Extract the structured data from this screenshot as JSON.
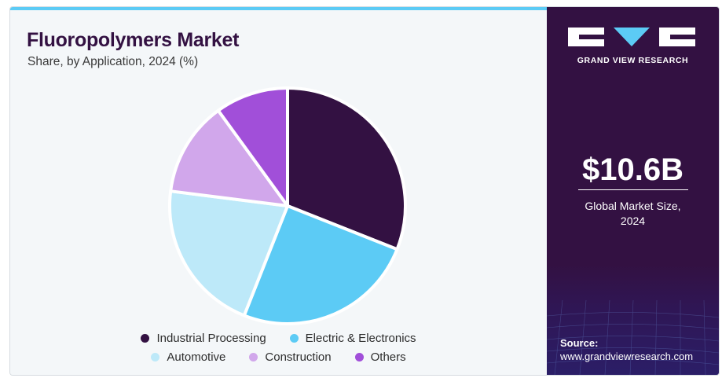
{
  "header": {
    "title": "Fluoropolymers Market",
    "subtitle": "Share, by Application, 2024 (%)"
  },
  "chart_data": {
    "type": "pie",
    "categories": [
      "Industrial Processing",
      "Electric & Electronics",
      "Automotive",
      "Construction",
      "Others"
    ],
    "values": [
      31,
      25,
      21,
      13,
      10
    ],
    "colors": [
      "#331142",
      "#5ccbf5",
      "#bde9f9",
      "#d1a7eb",
      "#a14fd9"
    ],
    "legend_position": "bottom"
  },
  "sidebar": {
    "brand": "GRAND VIEW RESEARCH",
    "market_size": "$10.6B",
    "market_size_caption_line1": "Global Market Size,",
    "market_size_caption_line2": "2024",
    "source_label": "Source:",
    "source_url": "www.grandviewresearch.com"
  }
}
